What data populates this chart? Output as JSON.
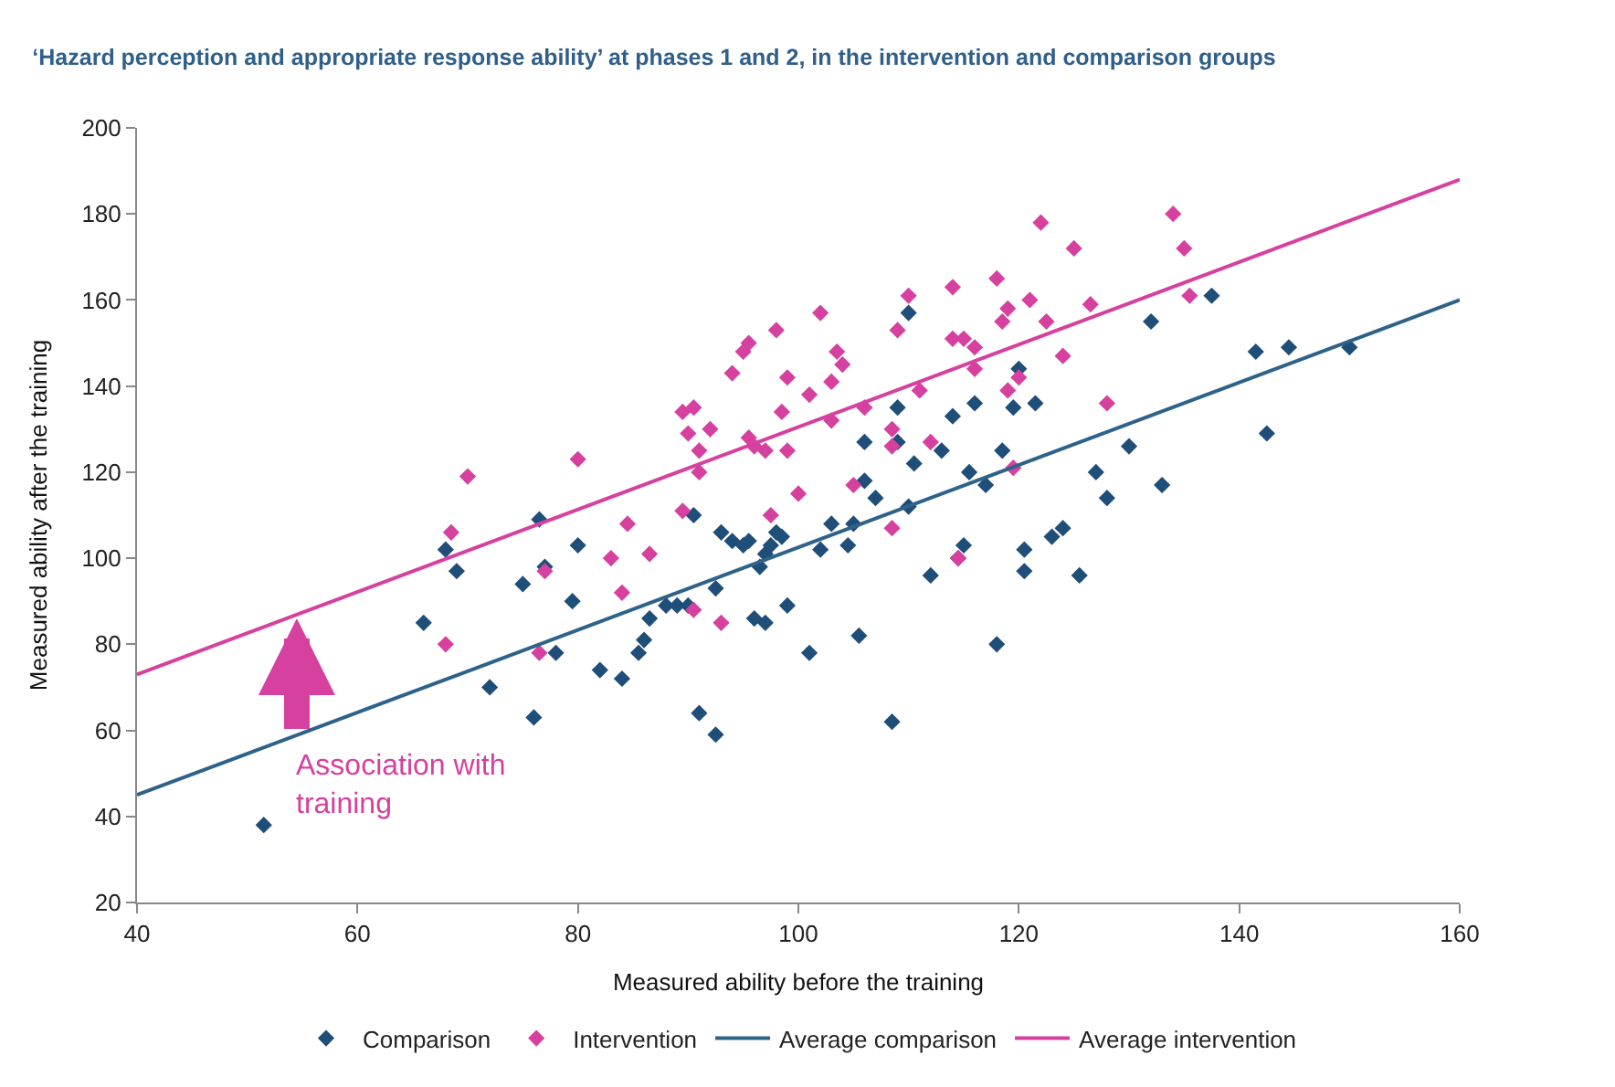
{
  "chart_data": {
    "type": "scatter",
    "title": "‘Hazard perception and appropriate response ability’ at phases 1 and 2, in the intervention and comparison groups",
    "xlabel": "Measured ability before the training",
    "ylabel": "Measured ability after the training",
    "xlim": [
      40,
      160
    ],
    "xticks": [
      40,
      60,
      80,
      100,
      120,
      140,
      160
    ],
    "ylim": [
      20,
      200
    ],
    "yticks": [
      20,
      40,
      60,
      80,
      100,
      120,
      140,
      160,
      180,
      200
    ],
    "legend": "bottom",
    "marker": "diamond",
    "series": [
      {
        "name": "Comparison",
        "color": "#1f4e79",
        "x": [
          51.5,
          66,
          68,
          69,
          72,
          75,
          76,
          76.5,
          77,
          78,
          79.5,
          80,
          82,
          84,
          85.5,
          86,
          86.5,
          88,
          89,
          90,
          90.5,
          91,
          92.5,
          92.5,
          93,
          94,
          95,
          95.5,
          96,
          96.5,
          97,
          97,
          97.5,
          98,
          98.5,
          99,
          101,
          102,
          103,
          104.5,
          105,
          105.5,
          106,
          106,
          107,
          108.5,
          109,
          109,
          110,
          110,
          110.5,
          112,
          113,
          114,
          114.5,
          115,
          115.5,
          116,
          117,
          118,
          118.5,
          119.5,
          120,
          120.5,
          120.5,
          121.5,
          123,
          124,
          125.5,
          127,
          128,
          130,
          132,
          133,
          137.5,
          141.5,
          142.5,
          144.5,
          150
        ],
        "values": [
          38,
          85,
          102,
          97,
          70,
          94,
          63,
          109,
          98,
          78,
          90,
          103,
          74,
          72,
          78,
          81,
          86,
          89,
          89,
          89,
          110,
          64,
          59,
          93,
          106,
          104,
          103,
          104,
          86,
          98,
          85,
          101,
          103,
          106,
          105,
          89,
          78,
          102,
          108,
          103,
          108,
          82,
          127,
          118,
          114,
          62,
          127,
          135,
          112,
          157,
          122,
          96,
          125,
          133,
          100,
          103,
          120,
          136,
          117,
          80,
          125,
          135,
          144,
          102,
          97,
          136,
          105,
          107,
          96,
          120,
          114,
          126,
          155,
          117,
          161,
          148,
          129,
          149,
          149
        ]
      },
      {
        "name": "Intervention",
        "color": "#d6409f",
        "x": [
          68,
          68.5,
          70,
          76.5,
          77,
          80,
          83,
          84,
          84.5,
          86.5,
          89.5,
          89.5,
          90,
          90.5,
          91,
          91,
          90.5,
          92,
          93,
          94,
          95,
          95.5,
          95.5,
          96,
          97,
          97.5,
          98,
          98.5,
          99,
          99,
          100,
          101,
          102,
          103,
          103,
          103.5,
          104,
          105,
          106,
          108.5,
          108.5,
          108.5,
          109,
          110,
          111,
          112,
          114,
          114,
          114.5,
          115,
          116,
          116,
          118,
          118.5,
          119,
          119,
          119.5,
          120,
          121,
          122,
          122.5,
          124,
          125,
          126.5,
          128,
          134,
          135,
          135.5
        ],
        "values": [
          80,
          106,
          119,
          78,
          97,
          123,
          100,
          92,
          108,
          101,
          134,
          111,
          129,
          135,
          125,
          120,
          88,
          130,
          85,
          143,
          148,
          150,
          128,
          126,
          125,
          110,
          153,
          134,
          142,
          125,
          115,
          138,
          157,
          141,
          132,
          148,
          145,
          117,
          135,
          130,
          126,
          107,
          153,
          161,
          139,
          127,
          151,
          163,
          100,
          151,
          144,
          149,
          165,
          155,
          158,
          139,
          121,
          142,
          160,
          178,
          155,
          147,
          172,
          159,
          136,
          180,
          172,
          161
        ]
      },
      {
        "name": "Average comparison",
        "color": "#2e6289",
        "type": "line",
        "marker": "none",
        "x": [
          40,
          160
        ],
        "values": [
          45,
          160
        ]
      },
      {
        "name": "Average intervention",
        "color": "#d6409f",
        "type": "line",
        "marker": "none",
        "x": [
          40,
          160
        ],
        "values": [
          73,
          188
        ]
      }
    ],
    "annotations": [
      {
        "text": "Association with\ntraining",
        "x": 54.5,
        "y": 86
      }
    ]
  }
}
